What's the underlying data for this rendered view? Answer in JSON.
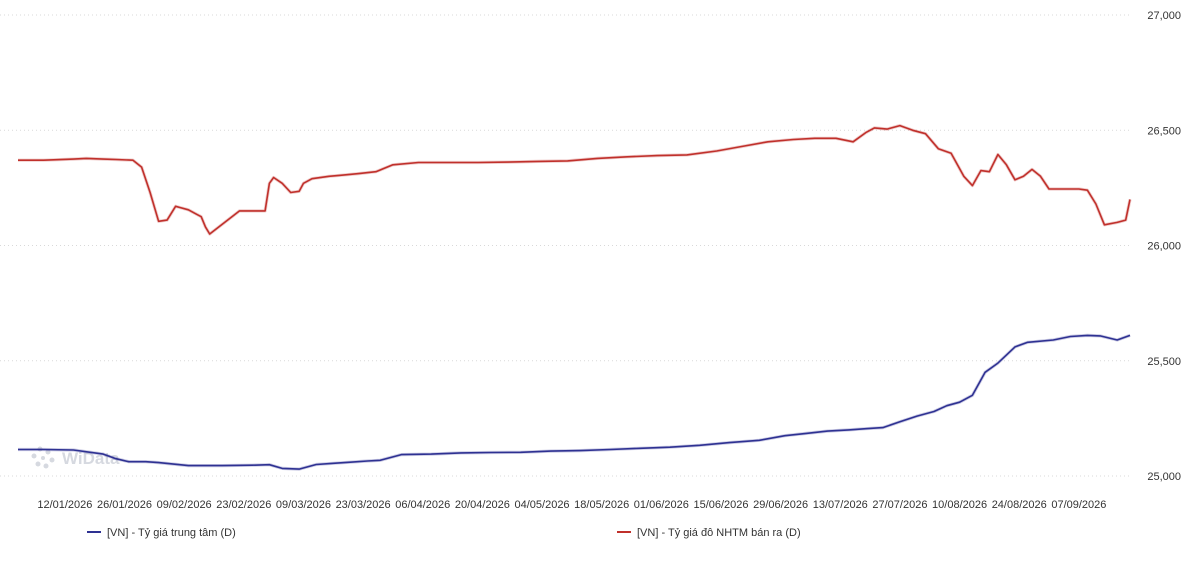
{
  "chart_data": {
    "type": "line",
    "title": "",
    "xlabel": "",
    "ylabel": "",
    "ylim": [
      25000,
      27000
    ],
    "y_ticks": [
      "25,000",
      "25,500",
      "26,000",
      "26,500",
      "27,000"
    ],
    "y_tick_values": [
      25000,
      25500,
      26000,
      26500,
      27000
    ],
    "y_axis_position": "right",
    "grid": "horizontal-dotted",
    "legend_position": "bottom",
    "x_start": "2026-01-01",
    "x_end": "2026-09-19",
    "x_ticks": [
      "12/01/2026",
      "26/01/2026",
      "09/02/2026",
      "23/02/2026",
      "09/03/2026",
      "23/03/2026",
      "06/04/2026",
      "20/04/2026",
      "04/05/2026",
      "18/05/2026",
      "01/06/2026",
      "15/06/2026",
      "29/06/2026",
      "13/07/2026",
      "27/07/2026",
      "10/08/2026",
      "24/08/2026",
      "07/09/2026"
    ],
    "x_tick_dates": [
      "2026-01-12",
      "2026-01-26",
      "2026-02-09",
      "2026-02-23",
      "2026-03-09",
      "2026-03-23",
      "2026-04-06",
      "2026-04-20",
      "2026-05-04",
      "2026-05-18",
      "2026-06-01",
      "2026-06-15",
      "2026-06-29",
      "2026-07-13",
      "2026-07-27",
      "2026-08-10",
      "2026-08-24",
      "2026-09-07"
    ],
    "series": [
      {
        "name": "[VN] - Tỷ giá trung tâm (D)",
        "color": "#2e3192",
        "dates": [
          "2026-01-01",
          "2026-01-07",
          "2026-01-14",
          "2026-01-21",
          "2026-01-24",
          "2026-01-27",
          "2026-01-31",
          "2026-02-03",
          "2026-02-10",
          "2026-02-14",
          "2026-02-18",
          "2026-02-25",
          "2026-03-01",
          "2026-03-04",
          "2026-03-08",
          "2026-03-12",
          "2026-03-16",
          "2026-03-20",
          "2026-03-24",
          "2026-03-27",
          "2026-04-01",
          "2026-04-08",
          "2026-04-15",
          "2026-04-22",
          "2026-04-29",
          "2026-05-06",
          "2026-05-13",
          "2026-05-20",
          "2026-05-27",
          "2026-06-03",
          "2026-06-10",
          "2026-06-17",
          "2026-06-24",
          "2026-06-30",
          "2026-07-05",
          "2026-07-10",
          "2026-07-15",
          "2026-07-19",
          "2026-07-23",
          "2026-07-27",
          "2026-07-31",
          "2026-08-04",
          "2026-08-07",
          "2026-08-10",
          "2026-08-13",
          "2026-08-16",
          "2026-08-19",
          "2026-08-23",
          "2026-08-26",
          "2026-09-01",
          "2026-09-05",
          "2026-09-09",
          "2026-09-12",
          "2026-09-16",
          "2026-09-19"
        ],
        "values": [
          25115,
          25115,
          25113,
          25095,
          25075,
          25062,
          25062,
          25058,
          25045,
          25045,
          25045,
          25047,
          25049,
          25033,
          25030,
          25050,
          25055,
          25060,
          25065,
          25068,
          25093,
          25095,
          25100,
          25102,
          25103,
          25108,
          25110,
          25115,
          25120,
          25125,
          25133,
          25145,
          25155,
          25175,
          25185,
          25195,
          25200,
          25205,
          25210,
          25235,
          25260,
          25280,
          25305,
          25320,
          25350,
          25450,
          25490,
          25560,
          25580,
          25590,
          25605,
          25610,
          25608,
          25590,
          25610
        ]
      },
      {
        "name": "[VN] - Tỷ giá đô NHTM bán ra (D)",
        "color": "#c0302b",
        "dates": [
          "2026-01-01",
          "2026-01-07",
          "2026-01-14",
          "2026-01-17",
          "2026-01-21",
          "2026-01-24",
          "2026-01-28",
          "2026-01-30",
          "2026-02-01",
          "2026-02-03",
          "2026-02-05",
          "2026-02-07",
          "2026-02-08",
          "2026-02-10",
          "2026-02-12",
          "2026-02-13",
          "2026-02-14",
          "2026-02-15",
          "2026-02-22",
          "2026-02-28",
          "2026-03-01",
          "2026-03-02",
          "2026-03-04",
          "2026-03-06",
          "2026-03-08",
          "2026-03-09",
          "2026-03-11",
          "2026-03-15",
          "2026-03-18",
          "2026-03-22",
          "2026-03-26",
          "2026-03-30",
          "2026-04-05",
          "2026-04-12",
          "2026-04-19",
          "2026-04-26",
          "2026-05-03",
          "2026-05-10",
          "2026-05-17",
          "2026-05-24",
          "2026-05-31",
          "2026-06-07",
          "2026-06-14",
          "2026-06-20",
          "2026-06-26",
          "2026-07-02",
          "2026-07-07",
          "2026-07-12",
          "2026-07-16",
          "2026-07-19",
          "2026-07-21",
          "2026-07-24",
          "2026-07-27",
          "2026-07-30",
          "2026-08-02",
          "2026-08-05",
          "2026-08-08",
          "2026-08-11",
          "2026-08-13",
          "2026-08-15",
          "2026-08-17",
          "2026-08-19",
          "2026-08-21",
          "2026-08-23",
          "2026-08-25",
          "2026-08-27",
          "2026-08-29",
          "2026-08-31",
          "2026-09-03",
          "2026-09-07",
          "2026-09-09",
          "2026-09-11",
          "2026-09-13",
          "2026-09-16",
          "2026-09-18",
          "2026-09-19"
        ],
        "values": [
          26370,
          26370,
          26375,
          26378,
          26375,
          26373,
          26370,
          26340,
          26230,
          26105,
          26110,
          26170,
          26165,
          26155,
          26135,
          26125,
          26080,
          26050,
          26150,
          26150,
          26270,
          26295,
          26270,
          26230,
          26235,
          26270,
          26290,
          26300,
          26305,
          26312,
          26320,
          26350,
          26360,
          26360,
          26360,
          26362,
          26365,
          26367,
          26378,
          26385,
          26390,
          26393,
          26410,
          26430,
          26450,
          26460,
          26465,
          26465,
          26450,
          26490,
          26510,
          26505,
          26520,
          26500,
          26485,
          26420,
          26400,
          26300,
          26260,
          26325,
          26320,
          26395,
          26350,
          26285,
          26300,
          26330,
          26300,
          26245,
          26245,
          26245,
          26240,
          26180,
          26090,
          26100,
          26110,
          26200
        ]
      }
    ]
  },
  "watermark": "WiData",
  "legend": {
    "central_rate_label": "[VN] - Tỷ giá trung tâm (D)",
    "bank_rate_label": "[VN] - Tỷ giá đô NHTM bán ra (D)"
  }
}
